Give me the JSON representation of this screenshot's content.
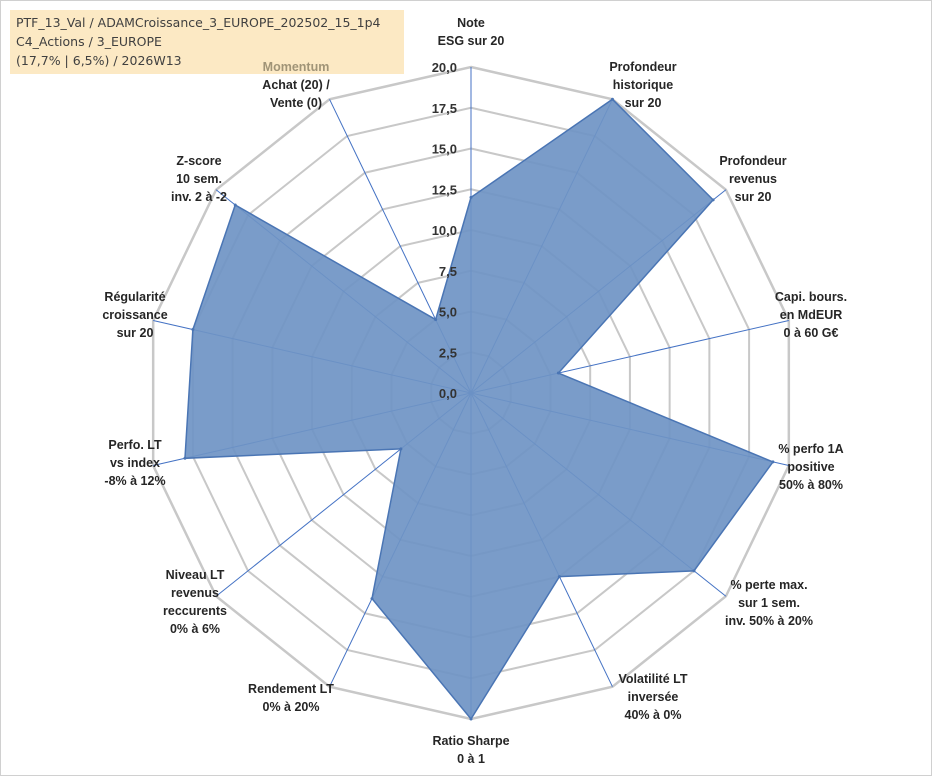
{
  "header": {
    "line1": "PTF_13_Val / ADAMCroissance_3_EUROPE_202502_15_1p4",
    "line2": "C4_Actions / 3_EUROPE",
    "line3": "(17,7% | 6,5%) / 2026W13"
  },
  "colors": {
    "fill": "#6f94c4",
    "outline": "#4a75b4",
    "grid": "#c8c8c8",
    "spoke": "#4472c4",
    "header_bg": "#fce9c4",
    "momentum_label": "#a09477"
  },
  "chart_data": {
    "type": "radar",
    "title": "",
    "series": [
      {
        "values": [
          12.0,
          20.0,
          19.0,
          5.5,
          19.0,
          17.5,
          12.5,
          20.0,
          14.0,
          5.5,
          18.0,
          17.5,
          18.5,
          5.0
        ]
      }
    ],
    "axes": [
      {
        "label": [
          "Note",
          "ESG sur 20"
        ]
      },
      {
        "label": [
          "Profondeur",
          "historique",
          "sur 20"
        ]
      },
      {
        "label": [
          "Profondeur",
          "revenus",
          "sur 20"
        ]
      },
      {
        "label": [
          "Capi. bours.",
          "en MdEUR",
          "0 à 60 G€"
        ]
      },
      {
        "label": [
          "% perfo 1A",
          "positive",
          "50% à 80%"
        ]
      },
      {
        "label": [
          "% perte max.",
          "sur 1 sem.",
          "inv. 50% à 20%"
        ]
      },
      {
        "label": [
          "Volatilité LT",
          "inversée",
          "40% à 0%"
        ]
      },
      {
        "label": [
          "Ratio Sharpe",
          "0 à 1"
        ]
      },
      {
        "label": [
          "Rendement LT",
          "0% à 20%"
        ]
      },
      {
        "label": [
          "Niveau LT",
          "revenus",
          "reccurents",
          "0% à 6%"
        ]
      },
      {
        "label": [
          "Perfo. LT",
          "vs index",
          "-8% à 12%"
        ]
      },
      {
        "label": [
          "Régularité",
          "croissance",
          "sur 20"
        ]
      },
      {
        "label": [
          "Z-score",
          "10 sem.",
          "inv. 2 à -2"
        ]
      },
      {
        "label": [
          "Achat (20) /",
          "Vente (0)"
        ],
        "sublabel": "Momentum"
      }
    ],
    "rmin": 0,
    "rmax": 20,
    "ticks": [
      "0,0",
      "2,5",
      "5,0",
      "7,5",
      "10,0",
      "12,5",
      "15,0",
      "17,5",
      "20,0"
    ],
    "grid": true,
    "legend": "none"
  }
}
